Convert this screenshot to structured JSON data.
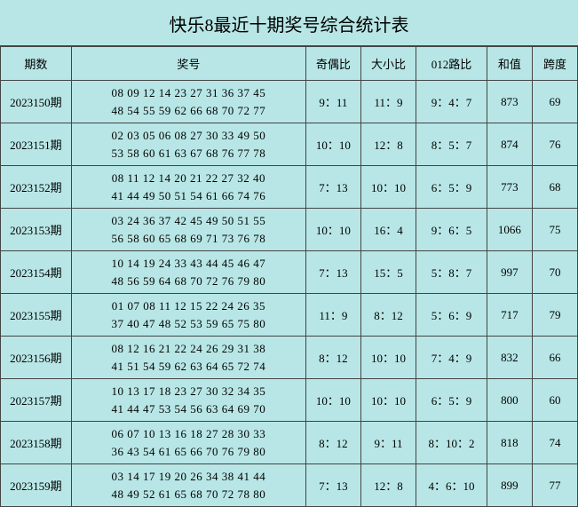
{
  "title": "快乐8最近十期奖号综合统计表",
  "headers": {
    "period": "期数",
    "numbers": "奖号",
    "odd_even": "奇偶比",
    "big_small": "大小比",
    "route_012": "012路比",
    "sum": "和值",
    "span": "跨度"
  },
  "rows": [
    {
      "period": "2023150期",
      "line1": "08 09 12 14 23 27 31 36 37 45",
      "line2": "48 54 55 59 62 66 68 70 72 77",
      "odd_even": "9：11",
      "big_small": "11：9",
      "route_012": "9：4：7",
      "sum": "873",
      "span": "69"
    },
    {
      "period": "2023151期",
      "line1": "02 03 05 06 08 27 30 33 49 50",
      "line2": "53 58 60 61 63 67 68 76 77 78",
      "odd_even": "10：10",
      "big_small": "12：8",
      "route_012": "8：5：7",
      "sum": "874",
      "span": "76"
    },
    {
      "period": "2023152期",
      "line1": "08 11 12 14 20 21 22 27 32 40",
      "line2": "41 44 49 50 51 54 61 66 74 76",
      "odd_even": "7：13",
      "big_small": "10：10",
      "route_012": "6：5：9",
      "sum": "773",
      "span": "68"
    },
    {
      "period": "2023153期",
      "line1": "03 24 36 37 42 45 49 50 51 55",
      "line2": "56 58 60 65 68 69 71 73 76 78",
      "odd_even": "10：10",
      "big_small": "16：4",
      "route_012": "9：6：5",
      "sum": "1066",
      "span": "75"
    },
    {
      "period": "2023154期",
      "line1": "10 14 19 24 33 43 44 45 46 47",
      "line2": "48 56 59 64 68 70 72 76 79 80",
      "odd_even": "7：13",
      "big_small": "15：5",
      "route_012": "5：8：7",
      "sum": "997",
      "span": "70"
    },
    {
      "period": "2023155期",
      "line1": "01 07 08 11 12 15 22 24 26 35",
      "line2": "37 40 47 48 52 53 59 65 75 80",
      "odd_even": "11：9",
      "big_small": "8：12",
      "route_012": "5：6：9",
      "sum": "717",
      "span": "79"
    },
    {
      "period": "2023156期",
      "line1": "08 12 16 21 22 24 26 29 31 38",
      "line2": "41 51 54 59 62 63 64 65 72 74",
      "odd_even": "8：12",
      "big_small": "10：10",
      "route_012": "7：4：9",
      "sum": "832",
      "span": "66"
    },
    {
      "period": "2023157期",
      "line1": "10 13 17 18 23 27 30 32 34 35",
      "line2": "41 44 47 53 54 56 63 64 69 70",
      "odd_even": "10：10",
      "big_small": "10：10",
      "route_012": "6：5：9",
      "sum": "800",
      "span": "60"
    },
    {
      "period": "2023158期",
      "line1": "06 07 10 13 16 18 27 28 30 33",
      "line2": "36 43 54 61 65 66 70 76 79 80",
      "odd_even": "8：12",
      "big_small": "9：11",
      "route_012": "8：10：2",
      "sum": "818",
      "span": "74"
    },
    {
      "period": "2023159期",
      "line1": "03 14 17 19 20 26 34 38 41 44",
      "line2": "48 49 52 61 65 68 70 72 78 80",
      "odd_even": "7：13",
      "big_small": "12：8",
      "route_012": "4：6：10",
      "sum": "899",
      "span": "77"
    }
  ],
  "colors": {
    "background": "#b8e6e6",
    "border": "#444444",
    "text": "#000000"
  }
}
